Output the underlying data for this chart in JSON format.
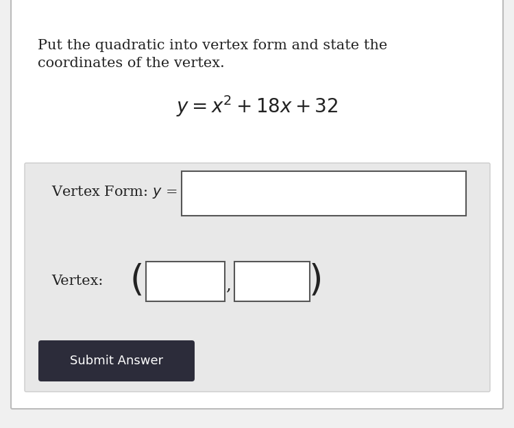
{
  "bg_color": "#f0f0f0",
  "white_bg": "#ffffff",
  "panel_bg": "#e8e8e8",
  "panel_border": "#cccccc",
  "input_box_color": "#ffffff",
  "input_box_border": "#555555",
  "button_bg": "#2c2c3a",
  "button_text_color": "#ffffff",
  "title_text": "Put the quadratic into vertex form and state the",
  "title_text2": "coordinates of the vertex.",
  "equation": "$y = x^2 + 18x + 32$",
  "label_vertex_form": "Vertex Form: $y$ =",
  "label_vertex": "Vertex:",
  "button_label": "Submit Answer",
  "title_fontsize": 15,
  "equation_fontsize": 20,
  "label_fontsize": 15,
  "button_fontsize": 13
}
